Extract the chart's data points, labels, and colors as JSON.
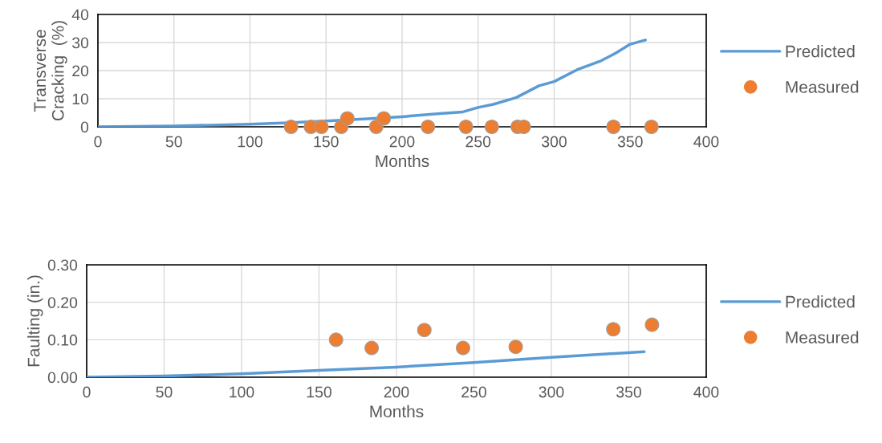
{
  "chart_data": [
    {
      "type": "line",
      "xlabel": "Months",
      "ylabel": "Transverse\nCracking  (%)",
      "xlim": [
        0,
        400
      ],
      "xticks": [
        0,
        50,
        100,
        150,
        200,
        250,
        300,
        350,
        400
      ],
      "ylim": [
        0,
        40
      ],
      "yticks": [
        0,
        10,
        20,
        30,
        40
      ],
      "grid": true,
      "legend": "right",
      "series": [
        {
          "name": "Predicted",
          "color": "#5b9bd5",
          "marker": "none",
          "x": [
            0,
            50,
            100,
            125,
            150,
            175,
            200,
            225,
            240,
            250,
            260,
            275,
            290,
            300,
            315,
            330,
            340,
            350,
            360
          ],
          "values": [
            0,
            0.3,
            0.9,
            1.4,
            2.1,
            2.8,
            3.6,
            4.7,
            5.3,
            6.9,
            8,
            10.4,
            14.6,
            16.1,
            20.3,
            23.3,
            26.1,
            29.4,
            30.9
          ]
        },
        {
          "name": "Measured",
          "type": "scatter",
          "color": "#ed7d31",
          "marker": "circle",
          "x": [
            127,
            140,
            147,
            160,
            164,
            183,
            188,
            217,
            242,
            259,
            276,
            280,
            339,
            364
          ],
          "values": [
            0,
            0,
            0,
            0,
            3,
            0,
            3,
            0,
            0,
            0,
            0,
            0,
            0,
            0
          ]
        }
      ]
    },
    {
      "type": "line",
      "xlabel": "Months",
      "ylabel": "Faulting (in.)",
      "xlim": [
        0,
        400
      ],
      "xticks": [
        0,
        50,
        100,
        150,
        200,
        250,
        300,
        350,
        400
      ],
      "ylim": [
        0,
        0.3
      ],
      "yticks": [
        {
          "value": 0,
          "label": "0.00"
        },
        {
          "value": 0.1,
          "label": "0.10"
        },
        {
          "value": 0.2,
          "label": "0.20"
        },
        {
          "value": 0.3,
          "label": "0.30"
        }
      ],
      "grid": true,
      "legend": "right",
      "series": [
        {
          "name": "Predicted",
          "color": "#5b9bd5",
          "marker": "none",
          "x": [
            0,
            50,
            100,
            150,
            200,
            250,
            300,
            360
          ],
          "values": [
            0,
            0.003,
            0.009,
            0.018,
            0.027,
            0.039,
            0.053,
            0.068
          ]
        },
        {
          "name": "Measured",
          "type": "scatter",
          "color": "#ed7d31",
          "marker": "circle",
          "x": [
            161,
            184,
            218,
            243,
            277,
            340,
            365
          ],
          "values": [
            0.1,
            0.078,
            0.126,
            0.078,
            0.081,
            0.128,
            0.14
          ]
        }
      ]
    }
  ]
}
